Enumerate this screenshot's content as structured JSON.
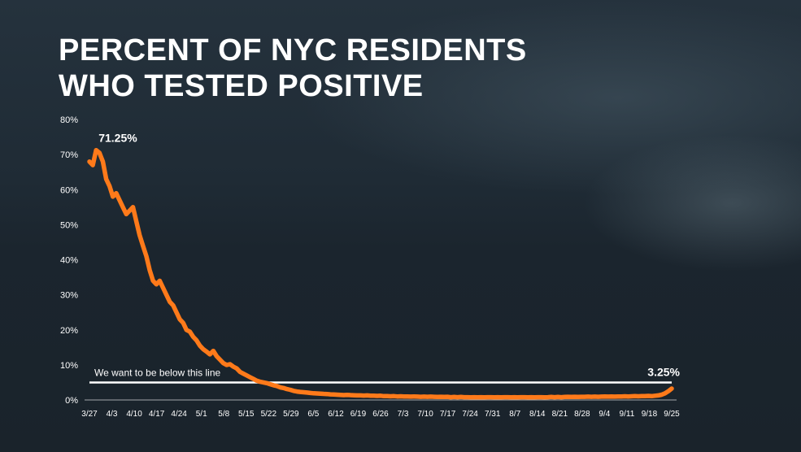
{
  "title": {
    "line1": "PERCENT OF NYC RESIDENTS",
    "line2": "WHO TESTED POSITIVE"
  },
  "colors": {
    "series": "#ff7a1a",
    "threshold": "#ffffff",
    "text": "#ffffff"
  },
  "chart_data": {
    "type": "line",
    "title": "PERCENT OF NYC RESIDENTS WHO TESTED POSITIVE",
    "xlabel": "",
    "ylabel": "",
    "x_ticks": [
      "3/27",
      "4/3",
      "4/10",
      "4/17",
      "4/24",
      "5/1",
      "5/8",
      "5/15",
      "5/22",
      "5/29",
      "6/5",
      "6/12",
      "6/19",
      "6/26",
      "7/3",
      "7/10",
      "7/17",
      "7/24",
      "7/31",
      "8/7",
      "8/14",
      "8/21",
      "8/28",
      "9/4",
      "9/11",
      "9/18",
      "9/25"
    ],
    "y_ticks": [
      "0%",
      "10%",
      "20%",
      "30%",
      "40%",
      "50%",
      "60%",
      "70%",
      "80%"
    ],
    "ylim": [
      0,
      80
    ],
    "grid": false,
    "threshold": {
      "value": 5,
      "label": "We want to be below this line"
    },
    "annotations": {
      "peak": "71.25%",
      "last": "3.25%"
    },
    "series": [
      {
        "x_start": "3/27",
        "y": [
          68,
          67,
          71.25,
          70.5,
          68,
          63,
          61,
          58,
          59,
          57,
          55,
          53,
          54,
          55,
          51,
          47,
          44,
          41,
          37,
          34,
          33,
          34,
          32,
          30,
          28,
          27,
          25,
          23,
          22,
          20,
          19.5,
          18,
          17,
          15.5,
          14.5,
          13.8,
          13,
          14,
          12.5,
          11.5,
          10.5,
          10,
          10.2,
          9.5,
          9,
          8,
          7.5,
          7,
          6.5,
          6,
          5.5,
          5.2,
          5,
          4.8,
          4.5,
          4.2,
          4,
          3.6,
          3.4,
          3.1,
          2.9,
          2.6,
          2.4,
          2.3,
          2.2,
          2.1,
          2,
          1.9,
          1.85,
          1.8,
          1.75,
          1.7,
          1.6,
          1.55,
          1.5,
          1.45,
          1.4,
          1.45,
          1.4,
          1.35,
          1.3,
          1.3,
          1.25,
          1.3,
          1.2,
          1.2,
          1.15,
          1.2,
          1.1,
          1.1,
          1.05,
          1.1,
          1,
          1.05,
          1,
          1,
          0.95,
          1,
          0.95,
          0.9,
          0.95,
          0.9,
          0.95,
          0.9,
          0.85,
          0.9,
          0.85,
          0.9,
          0.8,
          0.85,
          0.8,
          0.85,
          0.8,
          0.8,
          0.75,
          0.8,
          0.75,
          0.8,
          0.75,
          0.8,
          0.8,
          0.75,
          0.8,
          0.75,
          0.8,
          0.8,
          0.75,
          0.8,
          0.75,
          0.8,
          0.8,
          0.75,
          0.8,
          0.75,
          0.8,
          0.8,
          0.75,
          0.8,
          0.85,
          0.8,
          0.85,
          0.8,
          0.85,
          0.9,
          0.85,
          0.9,
          0.85,
          0.9,
          0.9,
          0.95,
          0.9,
          0.95,
          0.9,
          0.95,
          1,
          0.95,
          1,
          0.95,
          1,
          1,
          1.05,
          1,
          1.05,
          1.1,
          1.05,
          1.1,
          1.1,
          1.15,
          1.1,
          1.2,
          1.3,
          1.5,
          1.9,
          2.5,
          3.25
        ]
      }
    ]
  }
}
